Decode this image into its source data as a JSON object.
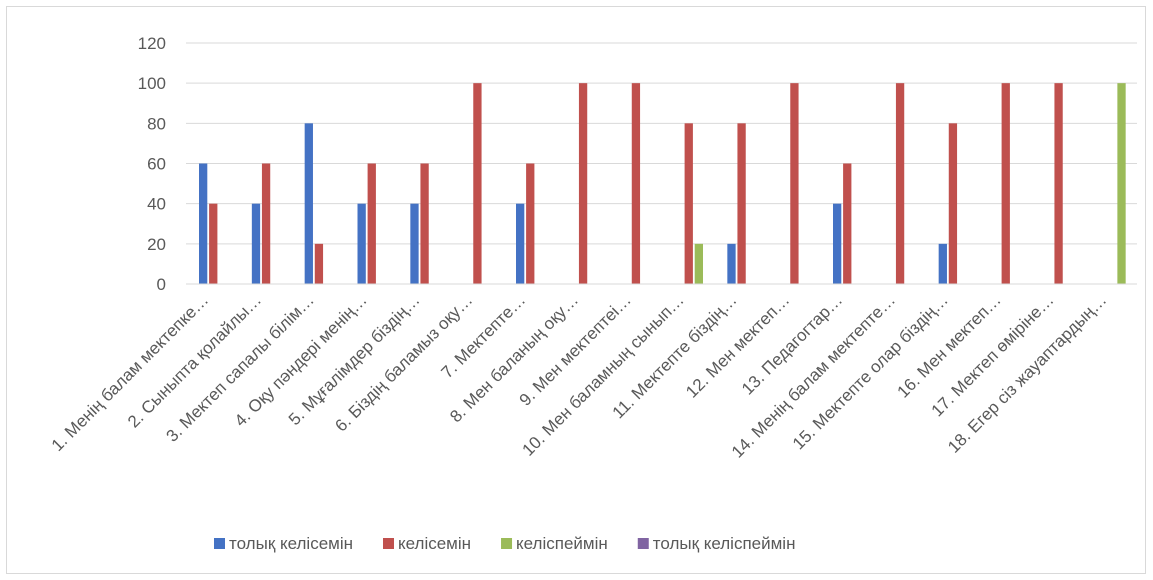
{
  "chart_data": {
    "type": "bar",
    "title": "",
    "xlabel": "",
    "ylabel": "",
    "ylim": [
      0,
      120
    ],
    "yticks": [
      0,
      20,
      40,
      60,
      80,
      100,
      120
    ],
    "grid": true,
    "legend_position": "bottom",
    "categories": [
      "1. Менің балам мектепке…",
      "2. Сыныпта қолайлы…",
      "3. Мектеп сапалы білім…",
      "4. Оқу пәндері менің…",
      "5. Мұғалімдер біздің…",
      "6. Біздің баламыз оқу…",
      "7. Мектепте…",
      "8. Мен баланың оқу…",
      "9. Мен мектептеі…",
      "10. Мен баламның сынып…",
      "11. Мектепте біздің…",
      "12. Мен мектеп…",
      "13. Педагогтар…",
      "14. Менің балам мектепте…",
      "15. Мектепте олар біздің…",
      "16. Мен мектеп…",
      "17. Мектеп өміріне…",
      "18. Егер сіз жауаптардың…"
    ],
    "series": [
      {
        "name": "толық келісемін",
        "color": "#4472C4",
        "values": [
          60,
          40,
          80,
          40,
          40,
          0,
          40,
          0,
          0,
          0,
          20,
          0,
          40,
          0,
          20,
          0,
          0,
          0
        ]
      },
      {
        "name": "келісемін",
        "color": "#C0504D",
        "values": [
          40,
          60,
          20,
          60,
          60,
          100,
          60,
          100,
          100,
          80,
          80,
          100,
          60,
          100,
          80,
          100,
          100,
          0
        ]
      },
      {
        "name": "келіспеймін",
        "color": "#9BBB59",
        "values": [
          0,
          0,
          0,
          0,
          0,
          0,
          0,
          0,
          0,
          20,
          0,
          0,
          0,
          0,
          0,
          0,
          0,
          100
        ]
      },
      {
        "name": "толық келіспеймін",
        "color": "#8064A2",
        "values": [
          0,
          0,
          0,
          0,
          0,
          0,
          0,
          0,
          0,
          0,
          0,
          0,
          0,
          0,
          0,
          0,
          0,
          0
        ]
      }
    ]
  }
}
